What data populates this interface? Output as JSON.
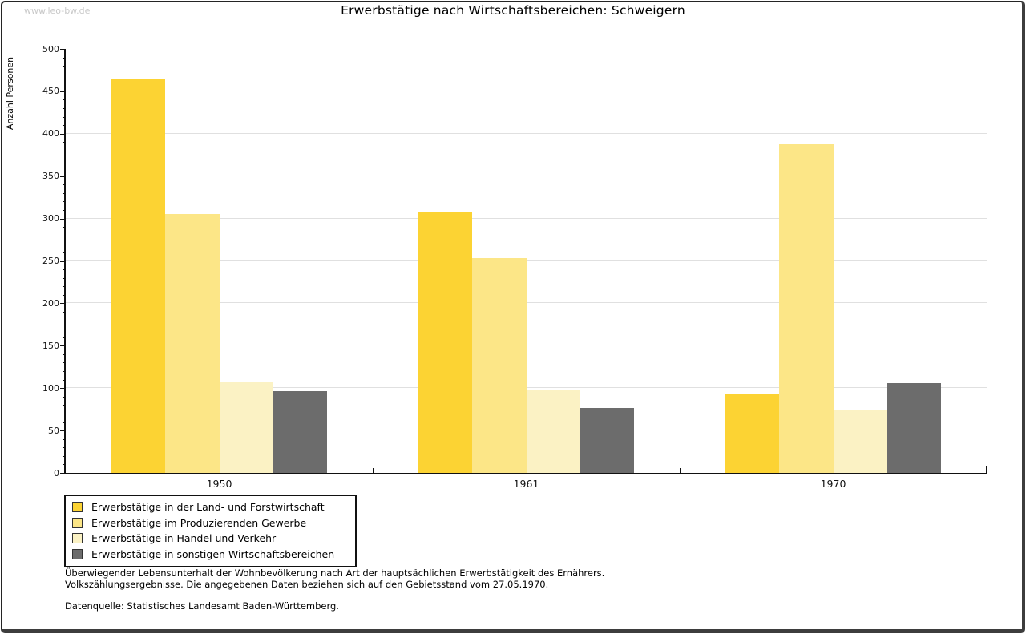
{
  "page": {
    "watermark": "www.leo-bw.de",
    "background": "#FFFFFF",
    "frame_color": "#242424"
  },
  "chart_data": {
    "type": "bar",
    "title": "Erwerbstätige nach Wirtschaftsbereichen: Schweigern",
    "ylabel": "Anzahl Personen",
    "xlabel": "",
    "categories": [
      "1950",
      "1961",
      "1970"
    ],
    "series": [
      {
        "name": "Erwerbstätige in der Land- und Forstwirtschaft",
        "color": "#FCD333",
        "values": [
          465,
          307,
          93
        ]
      },
      {
        "name": "Erwerbstätige im Produzierenden Gewerbe",
        "color": "#FCE687",
        "values": [
          305,
          253,
          388
        ]
      },
      {
        "name": "Erwerbstätige in Handel und Verkehr",
        "color": "#FBF2C4",
        "values": [
          107,
          98,
          74
        ]
      },
      {
        "name": "Erwerbstätige in sonstigen Wirtschaftsbereichen",
        "color": "#6C6C6C",
        "values": [
          96,
          77,
          106
        ]
      }
    ],
    "ylim": [
      0,
      500
    ],
    "ytick_step": 50,
    "yminor_step": 10,
    "ytick_labels": [
      "0",
      "50",
      "100",
      "150",
      "200",
      "250",
      "300",
      "350",
      "400",
      "450",
      "500"
    ],
    "grid": "horizontal",
    "grid_color": "#E0E0E0",
    "axis_color": "#111111",
    "legend_position": "bottom-left"
  },
  "notes": {
    "line1": "Überwiegender Lebensunterhalt der Wohnbevölkerung nach Art der hauptsächlichen Erwerbstätigkeit des Ernährers.",
    "line2": "Volkszählungsergebnisse. Die angegebenen Daten beziehen sich auf den Gebietsstand vom 27.05.1970.",
    "source": "Datenquelle: Statistisches Landesamt Baden-Württemberg."
  }
}
